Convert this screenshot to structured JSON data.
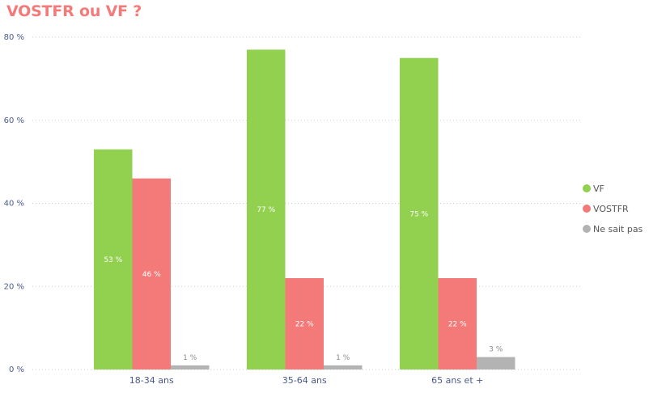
{
  "title": "VOSTFR ou VF ?",
  "colors": {
    "title": "#f47a7a",
    "axis_text": "#4a5a8c",
    "gridline": "#cfcfcf"
  },
  "chart_data": {
    "type": "bar",
    "title": "VOSTFR ou VF ?",
    "xlabel": "",
    "ylabel": "",
    "categories": [
      "18-34 ans",
      "35-64 ans",
      "65 ans et +"
    ],
    "series": [
      {
        "name": "VF",
        "color": "#92d050",
        "values": [
          53,
          77,
          75
        ],
        "labels": [
          "53 %",
          "77 %",
          "75 %"
        ]
      },
      {
        "name": "VOSTFR",
        "color": "#f47a7a",
        "values": [
          46,
          22,
          22
        ],
        "labels": [
          "46 %",
          "22 %",
          "22 %"
        ]
      },
      {
        "name": "Ne sait pas",
        "color": "#b3b3b3",
        "values": [
          1,
          1,
          3
        ],
        "labels": [
          "1 %",
          "1 %",
          "3 %"
        ]
      }
    ],
    "ylim": [
      0,
      80
    ],
    "yticks": [
      0,
      20,
      40,
      60,
      80
    ],
    "ytick_labels": [
      "0 %",
      "20 %",
      "40 %",
      "60 %",
      "80 %"
    ],
    "grid": true,
    "legend_position": "right"
  }
}
